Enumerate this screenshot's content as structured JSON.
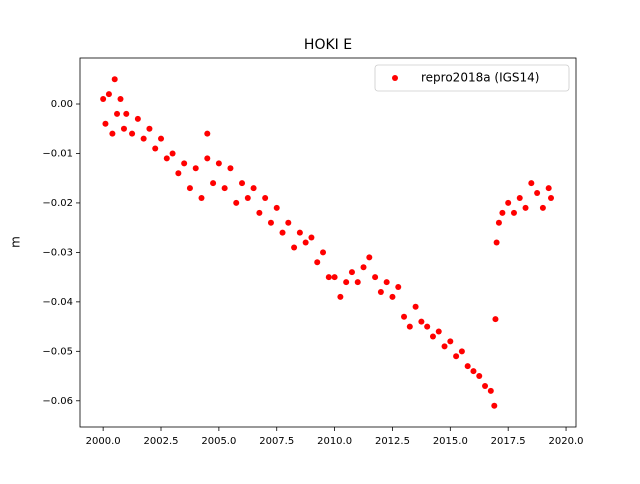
{
  "chart_data": {
    "type": "scatter",
    "title": "HOKI E",
    "y_label": "m",
    "legend": "upper right",
    "xlim": [
      1999.0,
      2020.43
    ],
    "ylim": [
      -0.0653,
      0.0093
    ],
    "xticks": [
      {
        "value": 2000,
        "label": "2000.0"
      },
      {
        "value": 2002.5,
        "label": "2002.5"
      },
      {
        "value": 2005,
        "label": "2005.0"
      },
      {
        "value": 2007.5,
        "label": "2007.5"
      },
      {
        "value": 2010,
        "label": "2010.0"
      },
      {
        "value": 2012.5,
        "label": "2012.5"
      },
      {
        "value": 2015,
        "label": "2015.0"
      },
      {
        "value": 2017.5,
        "label": "2017.5"
      },
      {
        "value": 2020,
        "label": "2020.0"
      }
    ],
    "yticks": [
      {
        "value": 0,
        "label": "0.00"
      },
      {
        "value": -0.01,
        "label": "−0.01"
      },
      {
        "value": -0.02,
        "label": "−0.02"
      },
      {
        "value": -0.03,
        "label": "−0.03"
      },
      {
        "value": -0.04,
        "label": "−0.04"
      },
      {
        "value": -0.05,
        "label": "−0.05"
      },
      {
        "value": -0.06,
        "label": "−0.06"
      }
    ],
    "series": [
      {
        "name": "repro2018a (IGS14)",
        "color": "#ff0000",
        "x": [
          2000.0,
          2000.1,
          2000.25,
          2000.4,
          2000.5,
          2000.6,
          2000.75,
          2000.9,
          2001.0,
          2001.25,
          2001.5,
          2001.75,
          2002.0,
          2002.25,
          2002.5,
          2002.75,
          2003.0,
          2003.25,
          2003.5,
          2003.75,
          2004.0,
          2004.25,
          2004.5,
          2004.5,
          2004.75,
          2005.0,
          2005.25,
          2005.5,
          2005.75,
          2006.0,
          2006.25,
          2006.5,
          2006.75,
          2007.0,
          2007.25,
          2007.5,
          2007.75,
          2008.0,
          2008.25,
          2008.5,
          2008.75,
          2009.0,
          2009.25,
          2009.5,
          2009.75,
          2010.0,
          2010.25,
          2010.5,
          2010.75,
          2011.0,
          2011.25,
          2011.5,
          2011.75,
          2012.0,
          2012.25,
          2012.5,
          2012.75,
          2013.0,
          2013.25,
          2013.5,
          2013.75,
          2014.0,
          2014.25,
          2014.5,
          2014.75,
          2015.0,
          2015.25,
          2015.5,
          2015.75,
          2016.0,
          2016.25,
          2016.5,
          2016.75,
          2016.9,
          2016.95,
          2017.0,
          2017.1,
          2017.25,
          2017.5,
          2017.75,
          2018.0,
          2018.25,
          2018.5,
          2018.75,
          2019.0,
          2019.25,
          2019.35
        ],
        "values": [
          0.001,
          -0.004,
          0.002,
          -0.006,
          0.005,
          -0.002,
          0.001,
          -0.005,
          -0.002,
          -0.006,
          -0.003,
          -0.007,
          -0.005,
          -0.009,
          -0.007,
          -0.011,
          -0.01,
          -0.014,
          -0.012,
          -0.017,
          -0.013,
          -0.019,
          -0.011,
          -0.006,
          -0.016,
          -0.012,
          -0.017,
          -0.013,
          -0.02,
          -0.016,
          -0.019,
          -0.017,
          -0.022,
          -0.019,
          -0.024,
          -0.021,
          -0.026,
          -0.024,
          -0.029,
          -0.026,
          -0.028,
          -0.027,
          -0.032,
          -0.03,
          -0.035,
          -0.035,
          -0.039,
          -0.036,
          -0.034,
          -0.036,
          -0.033,
          -0.031,
          -0.035,
          -0.038,
          -0.036,
          -0.039,
          -0.037,
          -0.043,
          -0.045,
          -0.041,
          -0.044,
          -0.045,
          -0.047,
          -0.046,
          -0.049,
          -0.048,
          -0.051,
          -0.05,
          -0.053,
          -0.054,
          -0.055,
          -0.057,
          -0.058,
          -0.061,
          -0.0435,
          -0.028,
          -0.024,
          -0.022,
          -0.02,
          -0.022,
          -0.019,
          -0.021,
          -0.016,
          -0.018,
          -0.021,
          -0.017,
          -0.019
        ]
      }
    ]
  }
}
